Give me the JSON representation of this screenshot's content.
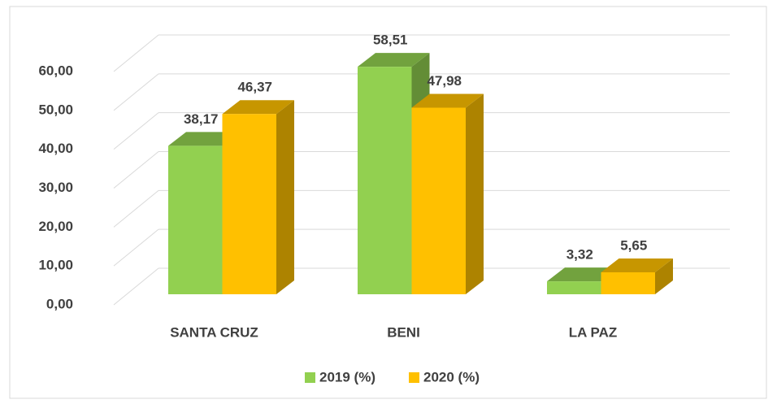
{
  "chart_data": {
    "type": "bar3d",
    "categories": [
      "SANTA CRUZ",
      "BENI",
      "LA PAZ"
    ],
    "series": [
      {
        "name": "2019 (%)",
        "color": "#92d050",
        "values": [
          38.17,
          58.51,
          3.32
        ],
        "value_labels": [
          "38,17",
          "58,51",
          "3,32"
        ]
      },
      {
        "name": "2020 (%)",
        "color": "#ffc000",
        "values": [
          46.37,
          47.98,
          5.65
        ],
        "value_labels": [
          "46,37",
          "47,98",
          "5,65"
        ]
      }
    ],
    "ylim": [
      0,
      60
    ],
    "yticks": [
      {
        "value": 0,
        "label": "0,00"
      },
      {
        "value": 10,
        "label": "10,00"
      },
      {
        "value": 20,
        "label": "20,00"
      },
      {
        "value": 30,
        "label": "30,00"
      },
      {
        "value": 40,
        "label": "40,00"
      },
      {
        "value": 50,
        "label": "50,00"
      },
      {
        "value": 60,
        "label": "60,00"
      }
    ],
    "grid": true,
    "legend": "bottom"
  }
}
